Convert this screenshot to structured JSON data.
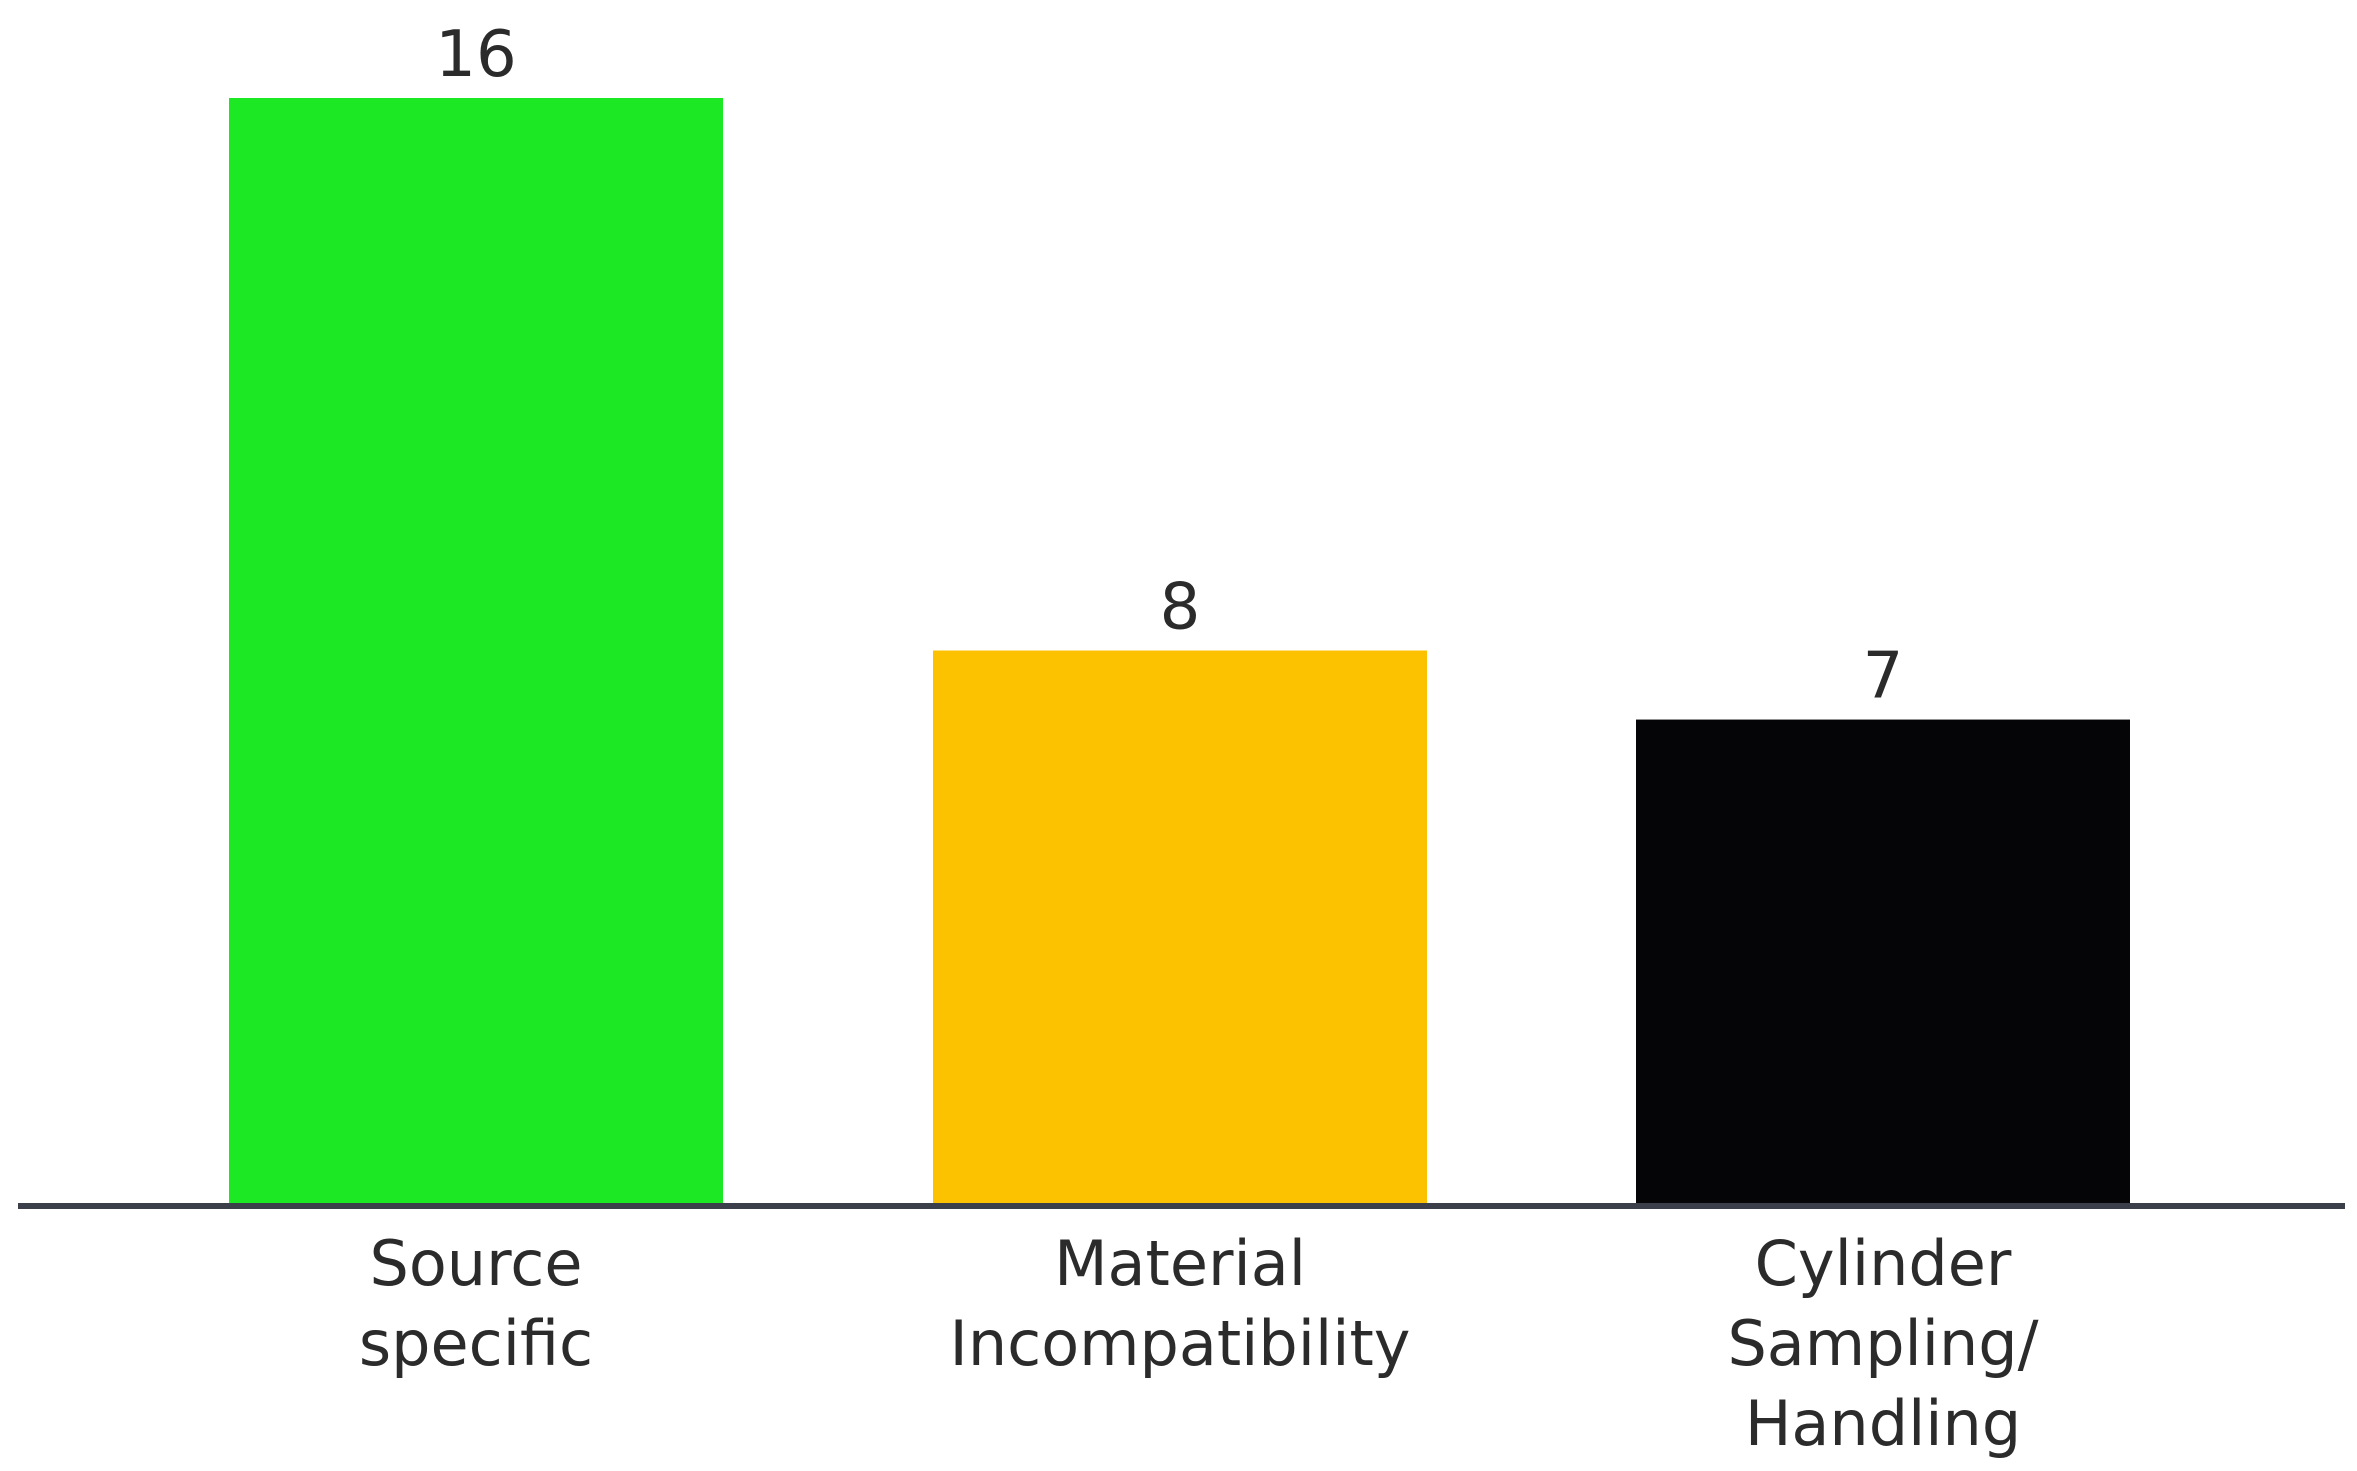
{
  "chart_data": {
    "type": "bar",
    "title": "",
    "xlabel": "",
    "ylabel": "",
    "categories": [
      [
        "Source",
        "specific"
      ],
      [
        "Material",
        "Incompatibility"
      ],
      [
        "Cylinder",
        "Sampling/",
        "Handling"
      ]
    ],
    "values": [
      16,
      8,
      7
    ],
    "colors": [
      "#1ce823",
      "#fcc200",
      "#050507"
    ],
    "ylim": [
      0,
      16
    ],
    "grid": false,
    "legend": "none"
  },
  "axis_color": "#3a3f4a"
}
